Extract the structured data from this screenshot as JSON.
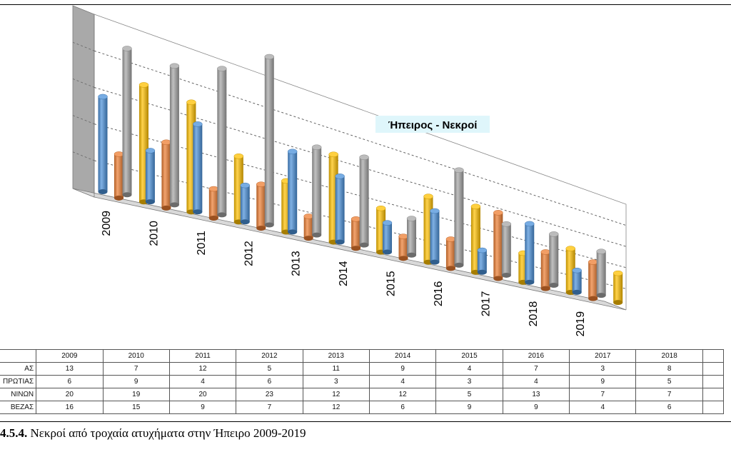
{
  "chart_data": {
    "type": "bar",
    "style": "3d-cylinder",
    "title": "Ήπειρος - Νεκροί",
    "categories": [
      "2009",
      "2010",
      "2011",
      "2012",
      "2013",
      "2014",
      "2015",
      "2016",
      "2017",
      "2018",
      "2019"
    ],
    "series": [
      {
        "name": "ΑΣ",
        "color": "#4a90d9",
        "values": [
          13,
          7,
          12,
          5,
          11,
          9,
          4,
          7,
          3,
          8,
          3
        ]
      },
      {
        "name": "ΠΡΩΤΙΑΣ",
        "color": "#ed7d31",
        "values": [
          6,
          9,
          4,
          6,
          3,
          4,
          3,
          4,
          9,
          5,
          5
        ]
      },
      {
        "name": "ΝΙΝΩΝ",
        "color": "#a5a5a5",
        "values": [
          20,
          19,
          20,
          23,
          12,
          12,
          5,
          13,
          7,
          7,
          6
        ]
      },
      {
        "name": "ΒΕΖΑΣ",
        "color": "#ffc000",
        "values": [
          16,
          15,
          9,
          7,
          12,
          6,
          9,
          9,
          4,
          6,
          4
        ]
      }
    ],
    "ylim": [
      0,
      25
    ],
    "grid": true,
    "legend": "table-below"
  },
  "caption": {
    "number": "4.5.4.",
    "text": " Νεκροί από τροχαία ατυχήματα στην Ήπειρο 2009-2019"
  }
}
